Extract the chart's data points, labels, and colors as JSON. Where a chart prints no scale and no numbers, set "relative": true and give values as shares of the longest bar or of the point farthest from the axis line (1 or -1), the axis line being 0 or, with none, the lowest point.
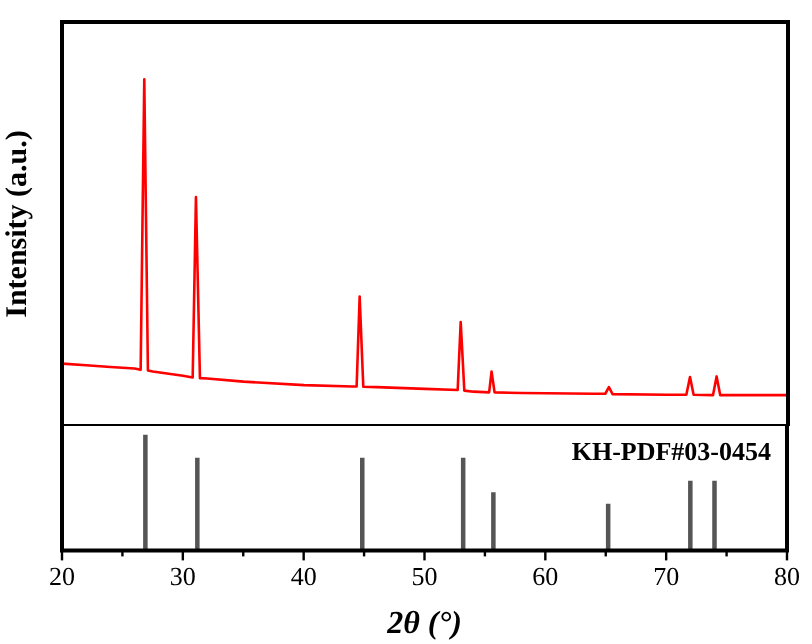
{
  "chart_data": [
    {
      "type": "line",
      "ylabel": "Intensity (a.u.)",
      "relative": true,
      "xlim": [
        20,
        80
      ],
      "tick_labels": false,
      "marker": "none",
      "series": [
        {
          "color": "#ff0000",
          "x": [
            20,
            22,
            24,
            26,
            26.5,
            26.8,
            27.1,
            27.5,
            30,
            30.8,
            31.07,
            31.4,
            32,
            35,
            40,
            44,
            44.35,
            44.6,
            44.9,
            46,
            50,
            52.7,
            52.95,
            53.25,
            54,
            55.3,
            55.5,
            55.75,
            58,
            64,
            64.9,
            65.2,
            65.5,
            70,
            71.6,
            71.9,
            72.2,
            73.8,
            74.1,
            74.4,
            76,
            80
          ],
          "values": [
            0.18,
            0.175,
            0.17,
            0.166,
            0.162,
            1.0,
            0.16,
            0.157,
            0.145,
            0.14,
            0.66,
            0.138,
            0.137,
            0.128,
            0.118,
            0.114,
            0.114,
            0.373,
            0.113,
            0.112,
            0.107,
            0.104,
            0.3,
            0.102,
            0.099,
            0.097,
            0.157,
            0.097,
            0.095,
            0.093,
            0.093,
            0.112,
            0.092,
            0.09,
            0.09,
            0.141,
            0.09,
            0.089,
            0.143,
            0.089,
            0.089,
            0.089
          ]
        }
      ]
    },
    {
      "type": "bar",
      "xlabel": "2θ (°)",
      "relative": true,
      "xlim": [
        20,
        80
      ],
      "tick_labels": "x",
      "xticks": [
        20,
        {
          "value": 25,
          "label": null
        },
        30,
        {
          "value": 35,
          "label": null
        },
        40,
        {
          "value": 45,
          "label": null
        },
        50,
        {
          "value": 55,
          "label": null
        },
        60,
        {
          "value": 65,
          "label": null
        },
        70,
        {
          "value": 75,
          "label": null
        },
        80
      ],
      "annotations": [
        "KH-PDF#03-0454"
      ],
      "series": [
        {
          "color": "#555555",
          "x": [
            26.9,
            31.2,
            44.85,
            53.2,
            55.7,
            65.2,
            72.0,
            74.0
          ],
          "values": [
            1.0,
            0.8,
            0.8,
            0.8,
            0.5,
            0.4,
            0.6,
            0.6
          ]
        }
      ]
    }
  ]
}
